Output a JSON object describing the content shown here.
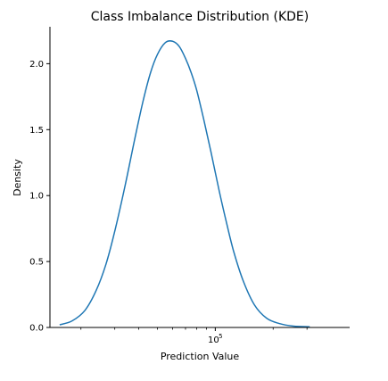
{
  "chart_data": {
    "type": "line",
    "title": "Class Imbalance Distribution (KDE)",
    "xlabel": "Prediction Value",
    "ylabel": "Density",
    "x_scale": "log",
    "xlim": [
      13800,
      500000
    ],
    "ylim": [
      0,
      2.28
    ],
    "y_ticks": [
      0.0,
      0.5,
      1.0,
      1.5,
      2.0
    ],
    "y_tick_labels": [
      "0.0",
      "0.5",
      "1.0",
      "1.5",
      "2.0"
    ],
    "x_major_ticks": [
      100000
    ],
    "x_major_tick_labels": [
      {
        "base": "10",
        "exp": "5"
      }
    ],
    "x_minor_ticks": [
      20000,
      30000,
      40000,
      50000,
      60000,
      70000,
      80000,
      90000,
      200000,
      300000
    ],
    "grid": false,
    "series": [
      {
        "color": "#1f77b4",
        "x": [
          15500,
          18000,
          21000,
          24000,
          27000,
          30000,
          34000,
          38000,
          42000,
          46000,
          50000,
          55000,
          60000,
          65000,
          70000,
          75000,
          80000,
          87000,
          95000,
          105000,
          115000,
          125000,
          140000,
          160000,
          185000,
          215000,
          255000,
          310000
        ],
        "y": [
          0.02,
          0.05,
          0.13,
          0.28,
          0.48,
          0.73,
          1.08,
          1.42,
          1.71,
          1.93,
          2.07,
          2.16,
          2.17,
          2.13,
          2.04,
          1.93,
          1.8,
          1.58,
          1.33,
          1.03,
          0.78,
          0.57,
          0.35,
          0.17,
          0.07,
          0.03,
          0.01,
          0.005
        ]
      }
    ]
  }
}
